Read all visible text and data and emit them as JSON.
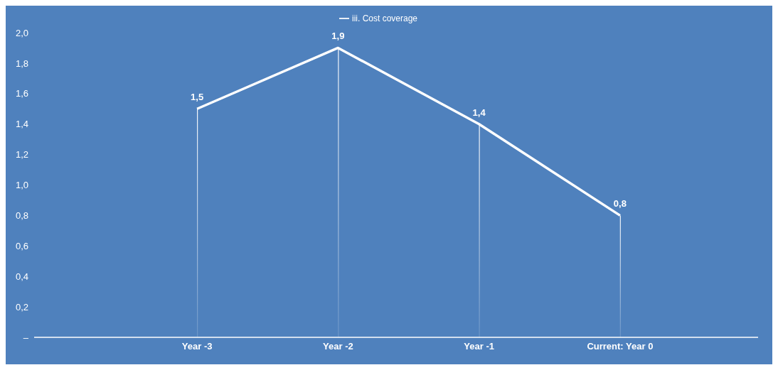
{
  "chart_data": {
    "type": "line",
    "categories": [
      "Year -3",
      "Year -2",
      "Year -1",
      "Current: Year 0"
    ],
    "series": [
      {
        "name": "iii. Cost coverage",
        "color": "#ffffff",
        "values": [
          1.5,
          1.9,
          1.4,
          0.8
        ]
      },
      {
        "type": "bar",
        "color": "#ffffff",
        "values": [
          1.5,
          1.9,
          1.4,
          0.8
        ]
      }
    ],
    "ylim": [
      0,
      2.0
    ],
    "yticks": [
      {
        "value": 0,
        "label": "–"
      },
      {
        "value": 0.2,
        "label": "0,2"
      },
      {
        "value": 0.4,
        "label": "0,4"
      },
      {
        "value": 0.6,
        "label": "0,6"
      },
      {
        "value": 0.8,
        "label": "0,8"
      },
      {
        "value": 1.0,
        "label": "1,0"
      },
      {
        "value": 1.2,
        "label": "1,2"
      },
      {
        "value": 1.4,
        "label": "1,4"
      },
      {
        "value": 1.6,
        "label": "1,6"
      },
      {
        "value": 1.8,
        "label": "1,8"
      },
      {
        "value": 2.0,
        "label": "2,0"
      }
    ],
    "value_labels": [
      "1,5",
      "1,9",
      "1,4",
      "0,8"
    ],
    "legend": "top",
    "marker": "none",
    "line_style": "solid"
  }
}
